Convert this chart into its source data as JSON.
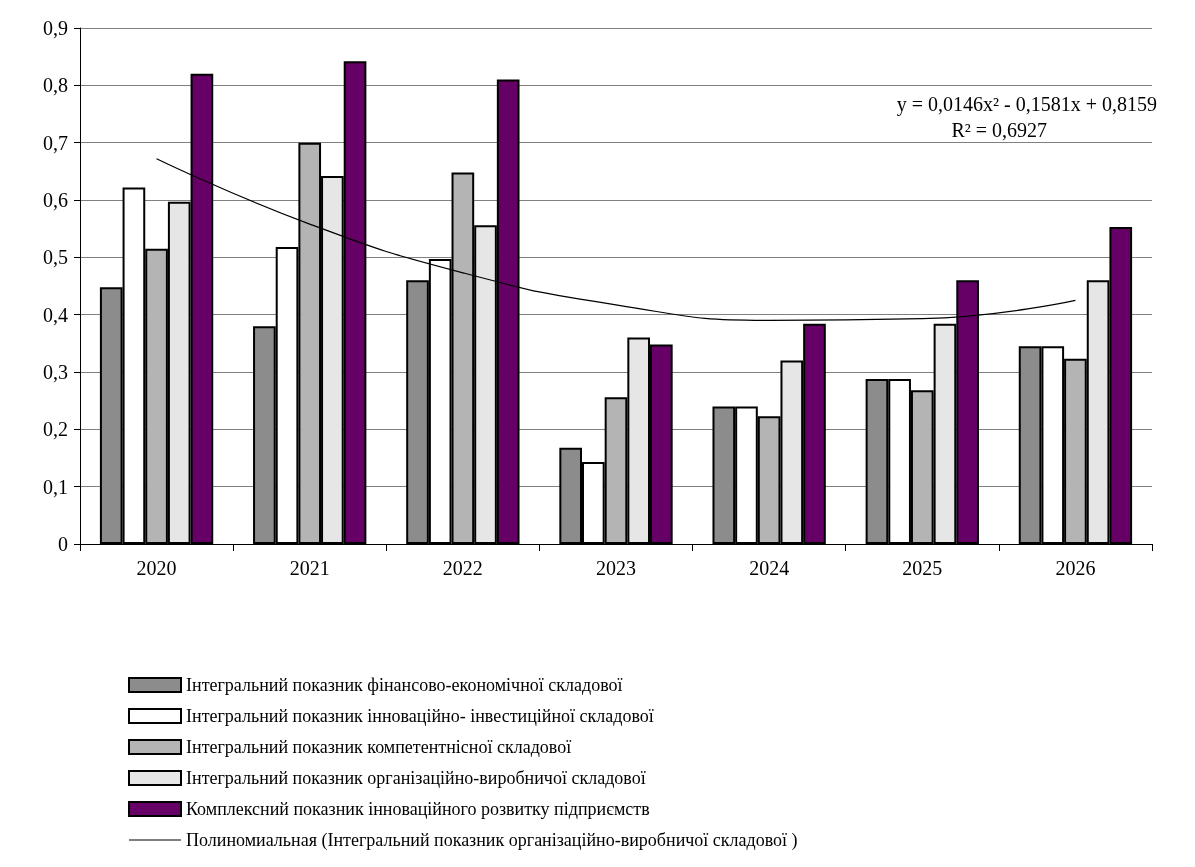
{
  "chart_data": {
    "type": "bar",
    "categories": [
      "2020",
      "2021",
      "2022",
      "2023",
      "2024",
      "2025",
      "2026"
    ],
    "series": [
      {
        "name": "Інтегральний показник фінансово-економічної складової",
        "color": "#8c8c8c",
        "values": [
          0.448,
          0.38,
          0.46,
          0.168,
          0.24,
          0.288,
          0.345
        ]
      },
      {
        "name": "Інтегральний показник інноваційно- інвестиційної складової",
        "color": "#ffffff",
        "values": [
          0.622,
          0.518,
          0.497,
          0.143,
          0.24,
          0.288,
          0.345
        ]
      },
      {
        "name": "Інтегральний показник компетентнісної складової",
        "color": "#b4b4b4",
        "values": [
          0.515,
          0.7,
          0.648,
          0.256,
          0.223,
          0.268,
          0.323
        ]
      },
      {
        "name": "Інтегральний показник організаційно-виробничої складової",
        "color": "#e6e6e6",
        "values": [
          0.597,
          0.642,
          0.556,
          0.36,
          0.32,
          0.384,
          0.46
        ]
      },
      {
        "name": "Комплексний показник інноваційного розвитку підприємств",
        "color": "#660066",
        "values": [
          0.82,
          0.842,
          0.81,
          0.348,
          0.384,
          0.46,
          0.553
        ]
      },
      {
        "name": "Полиномиальная (Інтегральний показник організаційно-виробничої складової )",
        "type": "line",
        "color": "#000000",
        "values": [
          0.672,
          0.558,
          0.473,
          0.417,
          0.39,
          0.393,
          0.425
        ]
      }
    ],
    "ylim": [
      0,
      0.9
    ],
    "yticks": [
      {
        "value": 0,
        "label": "0"
      },
      {
        "value": 0.1,
        "label": "0,1"
      },
      {
        "value": 0.2,
        "label": "0,2"
      },
      {
        "value": 0.3,
        "label": "0,3"
      },
      {
        "value": 0.4,
        "label": "0,4"
      },
      {
        "value": 0.5,
        "label": "0,5"
      },
      {
        "value": 0.6,
        "label": "0,6"
      },
      {
        "value": 0.7,
        "label": "0,7"
      },
      {
        "value": 0.8,
        "label": "0,8"
      },
      {
        "value": 0.9,
        "label": "0,9"
      }
    ],
    "grid": "y",
    "legend": "bottom",
    "marker": "none",
    "annotations": [
      "y = 0,0146x² - 0,1581x + 0,8159",
      "R² = 0,6927"
    ]
  }
}
